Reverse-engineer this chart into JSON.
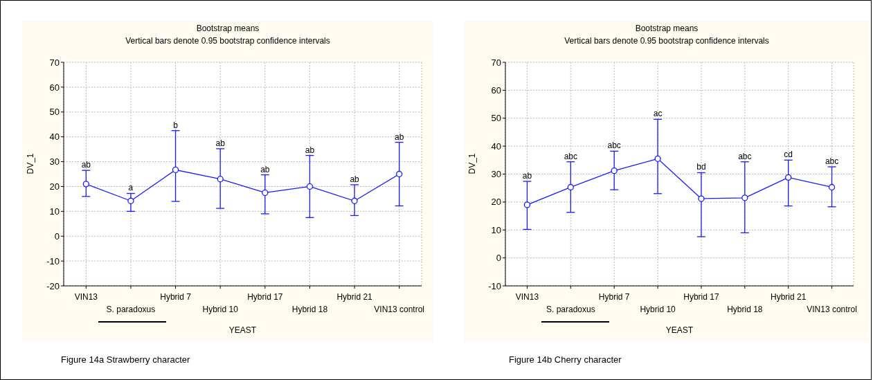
{
  "chart_data": [
    {
      "type": "line",
      "title": "Bootstrap means",
      "subtitle": "Vertical bars denote 0.95 bootstrap confidence intervals",
      "xlabel": "YEAST",
      "ylabel": "DV_1",
      "categories": [
        "VIN13",
        "S. paradoxus",
        "Hybrid 7",
        "Hybrid 10",
        "Hybrid 17",
        "Hybrid 18",
        "Hybrid 21",
        "VIN13 control"
      ],
      "series": [
        {
          "color": "#1a1aff",
          "values": [
            21,
            14.2,
            26.7,
            23,
            17.5,
            20,
            14.2,
            25
          ],
          "errors": [
            [
              16,
              26.5
            ],
            [
              10,
              17.2
            ],
            [
              14,
              42.5
            ],
            [
              11.2,
              35.2
            ],
            [
              9,
              24.7
            ],
            [
              7.5,
              32.5
            ],
            [
              8.3,
              20.7
            ],
            [
              12.2,
              37.8
            ]
          ]
        }
      ],
      "ylim": [
        -20,
        70
      ],
      "yticks": [
        -20,
        -10,
        0,
        10,
        20,
        30,
        40,
        50,
        60,
        70
      ],
      "grid": true,
      "marker": "circle",
      "line_style": "solid",
      "annotations": [
        {
          "text": "ab",
          "x": "VIN13",
          "y": 26.5
        },
        {
          "text": "a",
          "x": "S. paradoxus",
          "y": 17.2
        },
        {
          "text": "b",
          "x": "Hybrid 7",
          "y": 42.5
        },
        {
          "text": "ab",
          "x": "Hybrid 10",
          "y": 35.2
        },
        {
          "text": "ab",
          "x": "Hybrid 17",
          "y": 24.7
        },
        {
          "text": "ab",
          "x": "Hybrid 18",
          "y": 32.5
        },
        {
          "text": "ab",
          "x": "Hybrid 21",
          "y": 20.7
        },
        {
          "text": "ab",
          "x": "VIN13 control",
          "y": 37.8
        },
        "Figure 14a Strawberry character"
      ]
    },
    {
      "type": "line",
      "title": "Bootstrap means",
      "subtitle": "Vertical bars denote 0.95 bootstrap confidence intervals",
      "xlabel": "YEAST",
      "ylabel": "DV_1",
      "categories": [
        "VIN13",
        "S. paradoxus",
        "Hybrid 7",
        "Hybrid 10",
        "Hybrid 17",
        "Hybrid 18",
        "Hybrid 21",
        "VIN13 control"
      ],
      "series": [
        {
          "color": "#1a1aff",
          "values": [
            19,
            25.3,
            31.2,
            35.5,
            21.2,
            21.5,
            28.8,
            25.3
          ],
          "errors": [
            [
              10.2,
              27.4
            ],
            [
              16.3,
              34.4
            ],
            [
              24.4,
              38.2
            ],
            [
              23,
              49.6
            ],
            [
              7.6,
              30.5
            ],
            [
              9,
              34.4
            ],
            [
              18.6,
              35
            ],
            [
              18.3,
              32.6
            ]
          ]
        }
      ],
      "ylim": [
        -10,
        70
      ],
      "yticks": [
        -10,
        0,
        10,
        20,
        30,
        40,
        50,
        60,
        70
      ],
      "grid": true,
      "marker": "circle",
      "line_style": "solid",
      "annotations": [
        {
          "text": "ab",
          "x": "VIN13",
          "y": 27.4
        },
        {
          "text": "abc",
          "x": "S. paradoxus",
          "y": 34.4
        },
        {
          "text": "abc",
          "x": "Hybrid 7",
          "y": 38.2
        },
        {
          "text": "ac",
          "x": "Hybrid 10",
          "y": 49.6
        },
        {
          "text": "bd",
          "x": "Hybrid 17",
          "y": 30.5
        },
        {
          "text": "abc",
          "x": "Hybrid 18",
          "y": 34.4
        },
        {
          "text": "cd",
          "x": "Hybrid 21",
          "y": 35
        },
        {
          "text": "abc",
          "x": "VIN13 control",
          "y": 32.6
        },
        "Figure 14b Cherry character"
      ]
    }
  ]
}
